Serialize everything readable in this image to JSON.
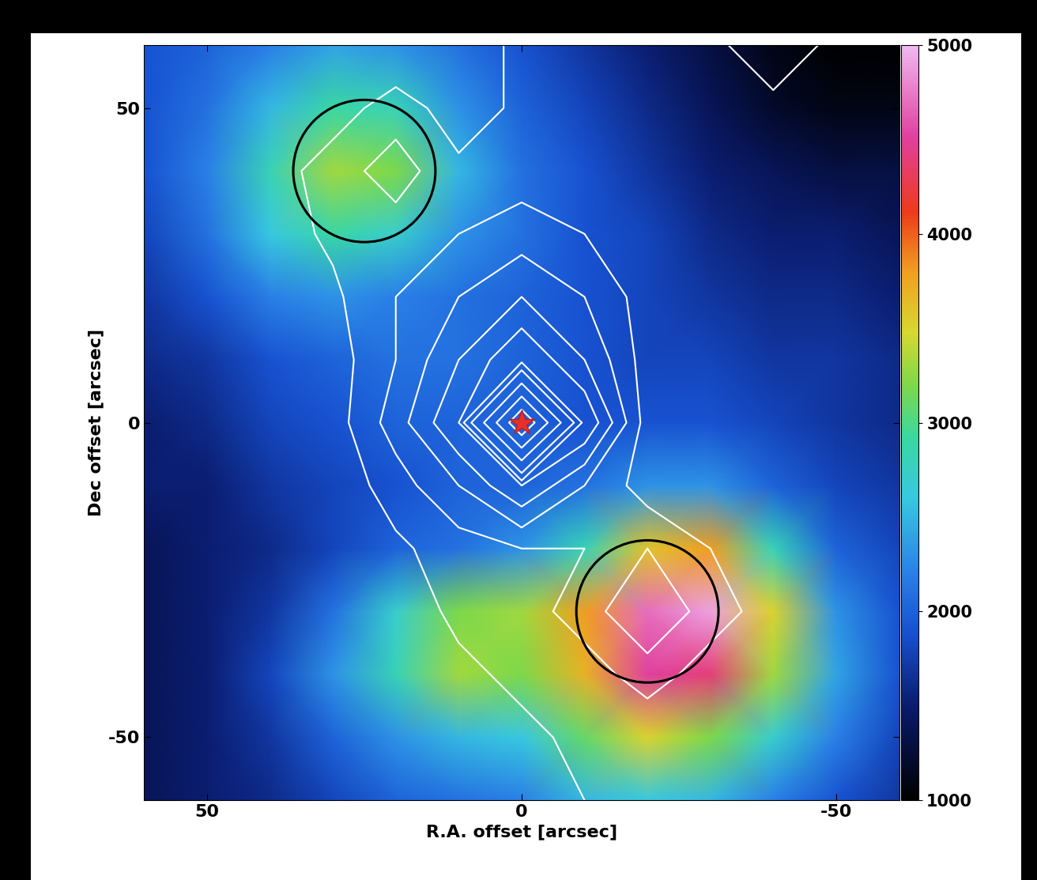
{
  "chart_data": {
    "type": "heatmap",
    "xlabel": "R.A. offset [arcsec]",
    "ylabel": "Dec offset [arcsec]",
    "xlim": [
      60,
      -60
    ],
    "ylim": [
      -60,
      60
    ],
    "xticks": [
      50,
      0,
      -50
    ],
    "yticks": [
      -50,
      0,
      50
    ],
    "x": [
      60,
      50,
      40,
      30,
      20,
      10,
      0,
      -10,
      -20,
      -30,
      -40,
      -50,
      -60
    ],
    "y": [
      60,
      50,
      40,
      30,
      20,
      10,
      0,
      -10,
      -20,
      -30,
      -40,
      -50,
      -60
    ],
    "cells": [
      [
        1900,
        2000,
        2200,
        2400,
        2300,
        2100,
        1900,
        1700,
        1500,
        1300,
        1100,
        1000,
        1000
      ],
      [
        1900,
        2100,
        2500,
        2900,
        2800,
        2300,
        2000,
        1800,
        1600,
        1400,
        1200,
        1100,
        1100
      ],
      [
        1900,
        2200,
        2800,
        3300,
        3200,
        2500,
        2100,
        1900,
        1700,
        1500,
        1400,
        1300,
        1300
      ],
      [
        1800,
        2100,
        2600,
        2900,
        2700,
        2300,
        2100,
        1900,
        1800,
        1600,
        1500,
        1500,
        1400
      ],
      [
        1700,
        1900,
        2200,
        2300,
        2200,
        2100,
        2000,
        1900,
        1800,
        1700,
        1600,
        1600,
        1500
      ],
      [
        1600,
        1700,
        1900,
        2000,
        2100,
        2100,
        2000,
        1900,
        1800,
        1800,
        1700,
        1700,
        1600
      ],
      [
        1500,
        1600,
        1800,
        1900,
        2000,
        2000,
        2000,
        1900,
        1900,
        1900,
        1800,
        1700,
        1600
      ],
      [
        1500,
        1500,
        1700,
        1800,
        1900,
        2000,
        2000,
        2100,
        2300,
        2300,
        2000,
        1800,
        1700
      ],
      [
        1400,
        1500,
        1600,
        1800,
        2000,
        2100,
        2300,
        2800,
        3600,
        3800,
        2800,
        2000,
        1800
      ],
      [
        1400,
        1500,
        1700,
        2100,
        2700,
        3200,
        3300,
        3800,
        4700,
        4900,
        3500,
        2300,
        1900
      ],
      [
        1400,
        1500,
        1800,
        2300,
        2800,
        3300,
        3200,
        3700,
        4500,
        4400,
        3300,
        2400,
        1900
      ],
      [
        1400,
        1500,
        1700,
        2000,
        2300,
        2500,
        2600,
        3100,
        3500,
        3200,
        2700,
        2200,
        1800
      ],
      [
        1400,
        1500,
        1600,
        1800,
        2000,
        2100,
        2200,
        2500,
        2600,
        2500,
        2200,
        1900,
        1700
      ]
    ],
    "colorbar_lim": [
      1000,
      5000
    ],
    "colorbar_ticks": [
      1000,
      2000,
      3000,
      4000,
      5000
    ],
    "contour_cells": [
      [
        0,
        0,
        0,
        0,
        0,
        0.5,
        1.2,
        1.5,
        1.5,
        1.2,
        0.5,
        1.2,
        1.5
      ],
      [
        0,
        0,
        0,
        0.5,
        1.5,
        0.5,
        1.2,
        1.5,
        1.5,
        1.5,
        1.2,
        1.5,
        1.5
      ],
      [
        0,
        0,
        0.5,
        1.5,
        2.5,
        1.2,
        1.5,
        1.5,
        1.5,
        1.5,
        1.5,
        1.5,
        1.5
      ],
      [
        0,
        0,
        0.5,
        1.2,
        1.5,
        2,
        2.5,
        2,
        1.5,
        1.5,
        1.5,
        1.5,
        1.5
      ],
      [
        0,
        0,
        0,
        0.8,
        2,
        3,
        4,
        3,
        1.5,
        1.2,
        1.5,
        1.5,
        1.2
      ],
      [
        0,
        0,
        0,
        0.5,
        2,
        4,
        6,
        4,
        1.5,
        1.2,
        1.5,
        1.5,
        1.2
      ],
      [
        0,
        0,
        0,
        0.5,
        2.5,
        5,
        30,
        6,
        1.5,
        1.2,
        1.2,
        1.5,
        1.2
      ],
      [
        0,
        0,
        0,
        0.3,
        1.5,
        3,
        5,
        3,
        1.5,
        1.2,
        1.2,
        1.2,
        1.2
      ],
      [
        0,
        0,
        0,
        0.2,
        0.8,
        1.5,
        2,
        2,
        3,
        2,
        1.2,
        1.2,
        1.2
      ],
      [
        0,
        0,
        0,
        0,
        0.5,
        1.2,
        1.5,
        2.5,
        4,
        2.5,
        1.5,
        1.2,
        1.2
      ],
      [
        0,
        0,
        0,
        0,
        0.3,
        0.8,
        1.2,
        1.5,
        2.5,
        1.5,
        1.2,
        1.2,
        1.2
      ],
      [
        0,
        0,
        0,
        0,
        0,
        0.3,
        0.8,
        1.2,
        1.2,
        1.2,
        1.2,
        1.2,
        1.2
      ],
      [
        0,
        0,
        0,
        0,
        0,
        0,
        0.3,
        1,
        1.2,
        1.2,
        1.2,
        1.2,
        1.2
      ]
    ],
    "contour_levels": [
      1,
      2,
      3,
      4,
      5,
      7,
      10,
      15,
      20,
      25
    ],
    "regions": [
      {
        "x": 25,
        "y": 40,
        "radius": 11.3
      },
      {
        "x": -20,
        "y": -30,
        "radius": 11.3
      }
    ],
    "source": {
      "x": 0,
      "y": 0
    }
  }
}
